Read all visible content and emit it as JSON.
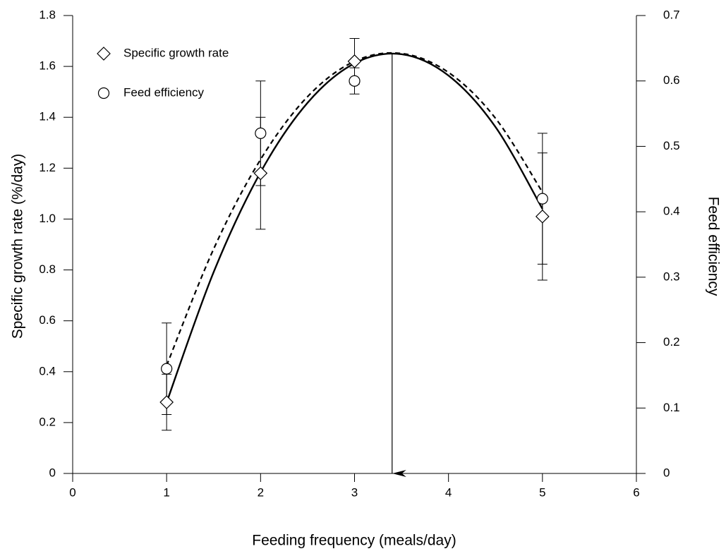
{
  "chart_data": {
    "type": "scatter",
    "xlabel": "Feeding frequency (meals/day)",
    "ylabel": "Specific growth rate (%/day)",
    "y2label": "Feed efficiency",
    "xlim": [
      0,
      6
    ],
    "xticks": [
      0,
      1,
      2,
      3,
      4,
      5,
      6
    ],
    "ylim": [
      0,
      1.8
    ],
    "yticks": [
      0,
      0.2,
      0.4,
      0.6,
      0.8,
      {
        "value": 1,
        "label": "1.0"
      },
      1.2,
      1.4,
      1.6,
      1.8
    ],
    "y2lim": [
      0,
      0.7
    ],
    "y2ticks": [
      0,
      0.1,
      0.2,
      0.3,
      0.4,
      0.5,
      0.6,
      0.7
    ],
    "legend": "upper left",
    "series": [
      {
        "name": "Specific growth rate",
        "marker": "diamond",
        "color": "#000000",
        "x": [
          1,
          2,
          3,
          5
        ],
        "values": [
          0.28,
          1.18,
          1.62,
          1.01
        ],
        "errors": [
          0.11,
          0.22,
          0.09,
          0.25
        ]
      },
      {
        "name": "Feed efficiency",
        "marker": "circle",
        "color": "#000000",
        "axis": "y2",
        "x": [
          1,
          2,
          3,
          5
        ],
        "values": [
          0.16,
          0.52,
          0.6,
          0.42
        ],
        "errors": [
          0.07,
          0.08,
          0.02,
          0.1
        ]
      }
    ],
    "fits": [
      {
        "line_style": "solid",
        "x": [
          1,
          1.5,
          2,
          2.5,
          3,
          3.5,
          4,
          4.5,
          5
        ],
        "values": [
          0.279,
          0.791,
          1.184,
          1.457,
          1.612,
          1.648,
          1.564,
          1.362,
          1.04
        ]
      },
      {
        "line_style": "dashed",
        "axis": "y2",
        "x": [
          1,
          1.5,
          2,
          2.5,
          3,
          3.5,
          4,
          4.5,
          5
        ],
        "values": [
          0.165,
          0.343,
          0.48,
          0.576,
          0.63,
          0.642,
          0.613,
          0.543,
          0.43
        ]
      }
    ],
    "arrow_x": 3.4
  }
}
